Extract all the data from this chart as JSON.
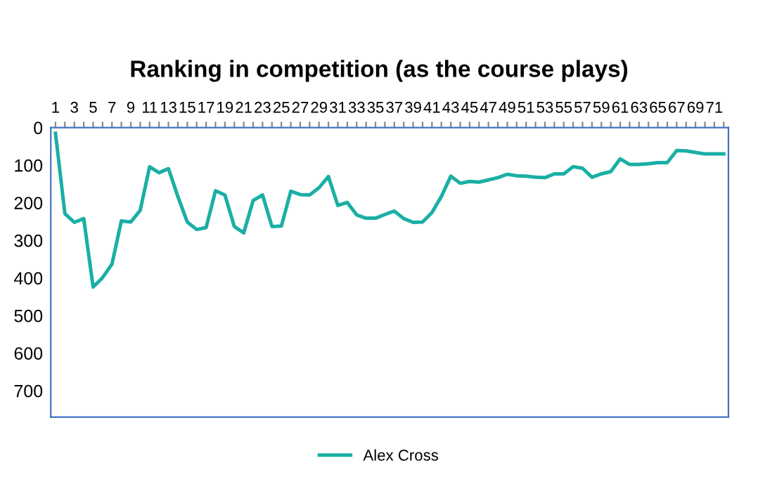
{
  "chart_data": {
    "type": "line",
    "title": "Ranking in competition (as the course plays)",
    "categories": [
      "1",
      null,
      "3",
      null,
      "5",
      null,
      "7",
      null,
      "9",
      null,
      "11",
      null,
      "13",
      null,
      "15",
      null,
      "17",
      null,
      "19",
      null,
      "21",
      null,
      "23",
      null,
      "25",
      null,
      "27",
      null,
      "29",
      null,
      "31",
      null,
      "33",
      null,
      "35",
      null,
      "37",
      null,
      "39",
      null,
      "41",
      null,
      "43",
      null,
      "45",
      null,
      "47",
      null,
      "49",
      null,
      "51",
      null,
      "53",
      null,
      "55",
      null,
      "57",
      null,
      "59",
      null,
      "61",
      null,
      "63",
      null,
      "65",
      null,
      "67",
      null,
      "69",
      null,
      "71",
      null
    ],
    "series": [
      {
        "name": "Alex Cross",
        "color": "#1aafa5",
        "values": [
          15,
          229,
          252,
          242,
          424,
          399,
          363,
          248,
          251,
          220,
          104,
          120,
          109,
          183,
          251,
          271,
          266,
          168,
          179,
          263,
          280,
          194,
          179,
          263,
          262,
          169,
          178,
          179,
          160,
          130,
          207,
          199,
          232,
          241,
          241,
          231,
          222,
          242,
          252,
          251,
          226,
          183,
          129,
          148,
          143,
          145,
          139,
          133,
          124,
          128,
          129,
          132,
          133,
          123,
          123,
          104,
          108,
          132,
          123,
          117,
          83,
          98,
          98,
          96,
          93,
          93,
          61,
          62,
          66,
          70,
          70,
          70
        ]
      }
    ],
    "ylim": [
      770,
      0
    ],
    "yticks": [
      0,
      100,
      200,
      300,
      400,
      500,
      600,
      700
    ],
    "grid": false,
    "legend": "bottom",
    "marker": "none",
    "line_style": "solid"
  }
}
